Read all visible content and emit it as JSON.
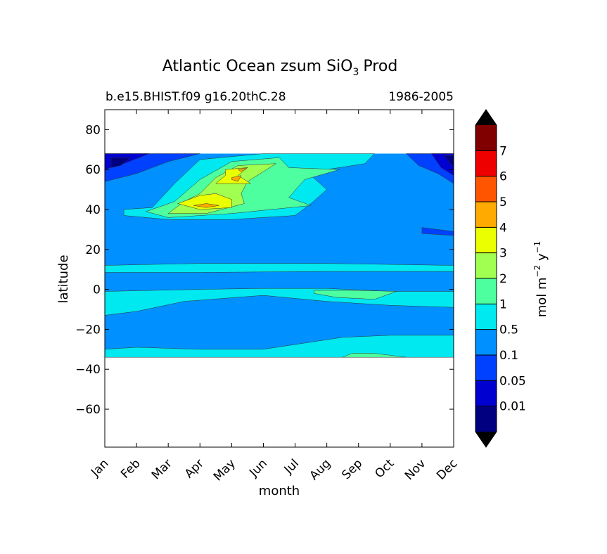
{
  "chart_data": {
    "type": "contourf",
    "title_main": "Atlantic Ocean zsum SiO",
    "title_sub": "3",
    "title_tail": "Prod",
    "subtitle_left": "b.e15.BHIST.f09 g16.20thC.28",
    "subtitle_right": "1986-2005",
    "xlabel": "month",
    "ylabel": "latitude",
    "x_ticks": [
      "Jan",
      "Feb",
      "Mar",
      "Apr",
      "May",
      "Jun",
      "Jul",
      "Aug",
      "Sep",
      "Oct",
      "Nov",
      "Dec"
    ],
    "y_ticks": [
      80,
      60,
      40,
      20,
      0,
      -20,
      -40,
      -60
    ],
    "y_tick_labels": [
      "80",
      "60",
      "40",
      "20",
      "0",
      "−20",
      "−40",
      "−60"
    ],
    "xlim": [
      0,
      11
    ],
    "ylim": [
      -79,
      90
    ],
    "data_lat_range": [
      -34,
      68
    ],
    "colorbar": {
      "label_main": "mol m",
      "label_exp1": "−2",
      "label_mid": " y",
      "label_exp2": "−1",
      "levels": [
        "0.01",
        "0.05",
        "0.1",
        "0.5",
        "1",
        "2",
        "3",
        "4",
        "5",
        "6",
        "7"
      ],
      "colors": [
        "#000080",
        "#0000d0",
        "#0040ff",
        "#0090ff",
        "#00e8f0",
        "#4dff9e",
        "#a0ff50",
        "#eaff00",
        "#ffaa00",
        "#ff5500",
        "#ee0000",
        "#800000"
      ],
      "extend": "both",
      "under_color": "#000000",
      "over_color": "#000000"
    },
    "regions": [
      {
        "name": "background-0.1-0.5",
        "color_index": 3,
        "points": [
          [
            0,
            68
          ],
          [
            11,
            68
          ],
          [
            11,
            -34
          ],
          [
            0,
            -34
          ]
        ]
      },
      {
        "name": "equatorial-band-north",
        "color_index": 4,
        "points": [
          [
            0,
            12
          ],
          [
            3,
            13
          ],
          [
            7,
            13
          ],
          [
            11,
            12
          ],
          [
            11,
            9
          ],
          [
            7,
            9
          ],
          [
            3,
            8.5
          ],
          [
            0,
            8.5
          ]
        ]
      },
      {
        "name": "equatorial-band-south",
        "color_index": 4,
        "points": [
          [
            0,
            -1
          ],
          [
            3,
            0
          ],
          [
            5,
            0.5
          ],
          [
            7,
            0.5
          ],
          [
            9,
            -1
          ],
          [
            11,
            -1
          ],
          [
            11,
            -9
          ],
          [
            9,
            -8
          ],
          [
            7,
            -6
          ],
          [
            5,
            -3
          ],
          [
            2.5,
            -6
          ],
          [
            1,
            -11
          ],
          [
            0,
            -13
          ]
        ]
      },
      {
        "name": "equatorial-core",
        "color_index": 5,
        "points": [
          [
            6.6,
            -0.5
          ],
          [
            8,
            -0.5
          ],
          [
            9.2,
            -1
          ],
          [
            8.5,
            -5
          ],
          [
            7.3,
            -4
          ],
          [
            6.6,
            -2
          ]
        ]
      },
      {
        "name": "southern-band",
        "color_index": 4,
        "points": [
          [
            0,
            -34
          ],
          [
            0,
            -30
          ],
          [
            1,
            -29
          ],
          [
            3,
            -30
          ],
          [
            5,
            -30
          ],
          [
            7.5,
            -24
          ],
          [
            9,
            -23
          ],
          [
            11,
            -23
          ],
          [
            11,
            -34
          ]
        ]
      },
      {
        "name": "southern-core",
        "color_index": 5,
        "points": [
          [
            7.5,
            -34
          ],
          [
            7.8,
            -32
          ],
          [
            8.5,
            -32
          ],
          [
            9.5,
            -34
          ]
        ]
      },
      {
        "name": "north-atlantic-0.5",
        "color_index": 4,
        "points": [
          [
            0.6,
            40
          ],
          [
            1.5,
            41
          ],
          [
            2.2,
            53
          ],
          [
            3,
            65
          ],
          [
            5,
            68
          ],
          [
            8.5,
            68
          ],
          [
            8.2,
            63
          ],
          [
            7,
            60
          ],
          [
            6.5,
            57
          ],
          [
            7,
            50
          ],
          [
            6.5,
            43
          ],
          [
            6,
            37
          ],
          [
            4,
            35
          ],
          [
            2,
            35
          ],
          [
            0.6,
            37
          ]
        ]
      },
      {
        "name": "north-atlantic-1",
        "color_index": 5,
        "points": [
          [
            1.3,
            39
          ],
          [
            2.2,
            44
          ],
          [
            3,
            55
          ],
          [
            4,
            64
          ],
          [
            5.5,
            66
          ],
          [
            5.8,
            61
          ],
          [
            7.4,
            60
          ],
          [
            6.3,
            55
          ],
          [
            5.8,
            46
          ],
          [
            6.5,
            42
          ],
          [
            4,
            38
          ],
          [
            2,
            36
          ]
        ]
      },
      {
        "name": "north-atlantic-2",
        "color_index": 6,
        "points": [
          [
            2,
            38
          ],
          [
            2.5,
            44
          ],
          [
            3,
            48
          ],
          [
            3.5,
            56
          ],
          [
            4.2,
            62
          ],
          [
            5.4,
            63
          ],
          [
            5,
            59
          ],
          [
            4.5,
            54
          ],
          [
            4.3,
            48
          ],
          [
            4.4,
            43
          ],
          [
            3.2,
            38
          ]
        ]
      },
      {
        "name": "north-atlantic-3-lower",
        "color_index": 7,
        "points": [
          [
            2.3,
            43
          ],
          [
            3,
            47
          ],
          [
            3.5,
            48
          ],
          [
            4,
            45
          ],
          [
            4,
            41
          ],
          [
            3,
            40
          ]
        ]
      },
      {
        "name": "north-atlantic-3-upper",
        "color_index": 7,
        "points": [
          [
            3.5,
            53
          ],
          [
            3.8,
            57
          ],
          [
            3.8,
            60
          ],
          [
            4.5,
            61
          ],
          [
            4.2,
            57
          ],
          [
            4.6,
            53
          ]
        ]
      },
      {
        "name": "north-atlantic-4-lower",
        "color_index": 8,
        "points": [
          [
            2.8,
            42
          ],
          [
            3.2,
            43
          ],
          [
            3.6,
            42
          ],
          [
            3.2,
            41
          ]
        ]
      },
      {
        "name": "north-atlantic-4-upper",
        "color_index": 8,
        "points": [
          [
            4,
            56
          ],
          [
            4.3,
            57
          ],
          [
            4.2,
            54
          ],
          [
            4,
            55
          ]
        ]
      },
      {
        "name": "north-atlantic-4-top",
        "color_index": 8,
        "points": [
          [
            4.2,
            60
          ],
          [
            4.5,
            61
          ],
          [
            4.3,
            59
          ]
        ]
      },
      {
        "name": "labrador-0.05",
        "color_index": 2,
        "points": [
          [
            0,
            68
          ],
          [
            3,
            68
          ],
          [
            2,
            64
          ],
          [
            1,
            58
          ],
          [
            0,
            54
          ]
        ]
      },
      {
        "name": "labrador-0.01",
        "color_index": 1,
        "points": [
          [
            0,
            68
          ],
          [
            1.4,
            68
          ],
          [
            0.6,
            63
          ],
          [
            0,
            60
          ]
        ]
      },
      {
        "name": "labrador-deep",
        "color_index": 0,
        "points": [
          [
            0.2,
            66
          ],
          [
            0.8,
            66
          ],
          [
            0.5,
            62
          ],
          [
            0.2,
            61
          ]
        ]
      },
      {
        "name": "nordic-0.05",
        "color_index": 2,
        "points": [
          [
            9.5,
            68
          ],
          [
            11,
            68
          ],
          [
            11,
            53
          ],
          [
            10.5,
            58
          ],
          [
            9.9,
            62
          ]
        ]
      },
      {
        "name": "nordic-0.01",
        "color_index": 1,
        "points": [
          [
            10.3,
            68
          ],
          [
            11,
            68
          ],
          [
            11,
            57
          ],
          [
            10.6,
            61
          ]
        ]
      },
      {
        "name": "nordic-deep",
        "color_index": 0,
        "points": [
          [
            10.7,
            67
          ],
          [
            11,
            67
          ],
          [
            11,
            61
          ]
        ]
      },
      {
        "name": "east-patch",
        "color_index": 2,
        "points": [
          [
            10,
            31
          ],
          [
            11,
            29
          ],
          [
            11,
            27
          ],
          [
            10,
            28
          ]
        ]
      }
    ]
  }
}
